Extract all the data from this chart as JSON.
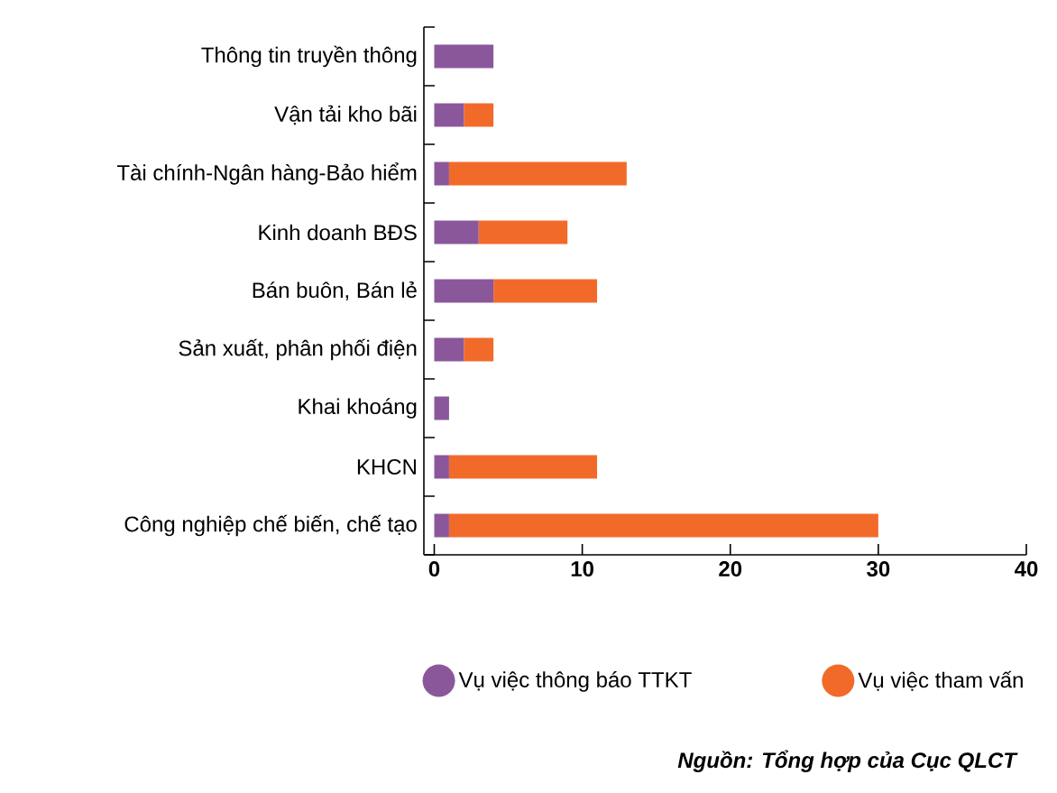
{
  "chart_data": {
    "type": "bar",
    "orientation": "horizontal",
    "stacked": true,
    "categories": [
      "Thông tin truyền thông",
      "Vận tải kho bãi",
      "Tài chính-Ngân hàng-Bảo hiểm",
      "Kinh doanh BĐS",
      "Bán buôn, Bán lẻ",
      "Sản xuất, phân phối điện",
      "Khai khoáng",
      "KHCN",
      "Công nghiệp chế biến, chế tạo"
    ],
    "series": [
      {
        "name": "Vụ việc thông báo TTKT",
        "color": "#8b579b",
        "values": [
          4,
          2,
          1,
          3,
          4,
          2,
          1,
          1,
          1
        ]
      },
      {
        "name": "Vụ việc tham vấn",
        "color": "#f26a2a",
        "values": [
          0,
          2,
          12,
          6,
          7,
          2,
          0,
          10,
          29
        ]
      }
    ],
    "xlim": [
      -0.7,
      40
    ],
    "xticks": [
      0,
      10,
      20,
      30,
      40
    ],
    "legend": "bottom",
    "annotations": [
      "Nguồn: Tổng hợp của Cục QLCT"
    ]
  }
}
